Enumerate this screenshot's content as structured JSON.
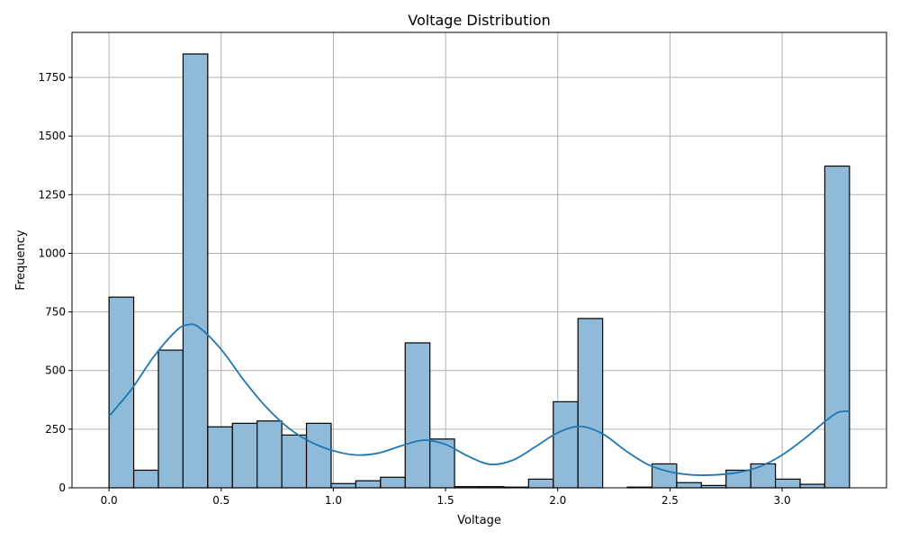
{
  "chart_data": {
    "type": "bar",
    "subtype": "histogram",
    "title": "Voltage Distribution",
    "xlabel": "Voltage",
    "ylabel": "Frequency",
    "xlim": [
      -0.165,
      3.465
    ],
    "ylim": [
      0,
      1942
    ],
    "xticks": [
      "0.0",
      "0.5",
      "1.0",
      "1.5",
      "2.0",
      "2.5",
      "3.0"
    ],
    "xtick_values": [
      0.0,
      0.5,
      1.0,
      1.5,
      2.0,
      2.5,
      3.0
    ],
    "yticks": [
      "0",
      "250",
      "500",
      "750",
      "1000",
      "1250",
      "1500",
      "1750"
    ],
    "ytick_values": [
      0,
      250,
      500,
      750,
      1000,
      1250,
      1500,
      1750
    ],
    "grid": true,
    "bin_start": 0.0,
    "bin_width": 0.11,
    "values": [
      813,
      75,
      587,
      1850,
      260,
      275,
      285,
      225,
      275,
      18,
      30,
      45,
      618,
      208,
      5,
      5,
      3,
      37,
      367,
      722,
      0,
      3,
      102,
      22,
      10,
      75,
      102,
      37,
      15,
      1372
    ],
    "kde": {
      "x": [
        0.0,
        0.1,
        0.2,
        0.3,
        0.35,
        0.4,
        0.5,
        0.6,
        0.7,
        0.8,
        0.9,
        1.0,
        1.1,
        1.2,
        1.3,
        1.4,
        1.5,
        1.6,
        1.7,
        1.8,
        1.9,
        2.0,
        2.1,
        2.2,
        2.3,
        2.4,
        2.5,
        2.6,
        2.7,
        2.8,
        2.9,
        3.0,
        3.1,
        3.2,
        3.25,
        3.3
      ],
      "y": [
        305,
        420,
        560,
        670,
        695,
        685,
        590,
        460,
        345,
        255,
        195,
        158,
        140,
        148,
        178,
        203,
        185,
        135,
        100,
        118,
        175,
        235,
        262,
        230,
        160,
        100,
        68,
        55,
        55,
        65,
        90,
        140,
        210,
        290,
        322,
        327
      ]
    },
    "colors": {
      "bar_fill": "#8fbbd9",
      "bar_edge": "#000000",
      "kde_line": "#1f77b4",
      "grid": "#b0b0b0"
    }
  }
}
